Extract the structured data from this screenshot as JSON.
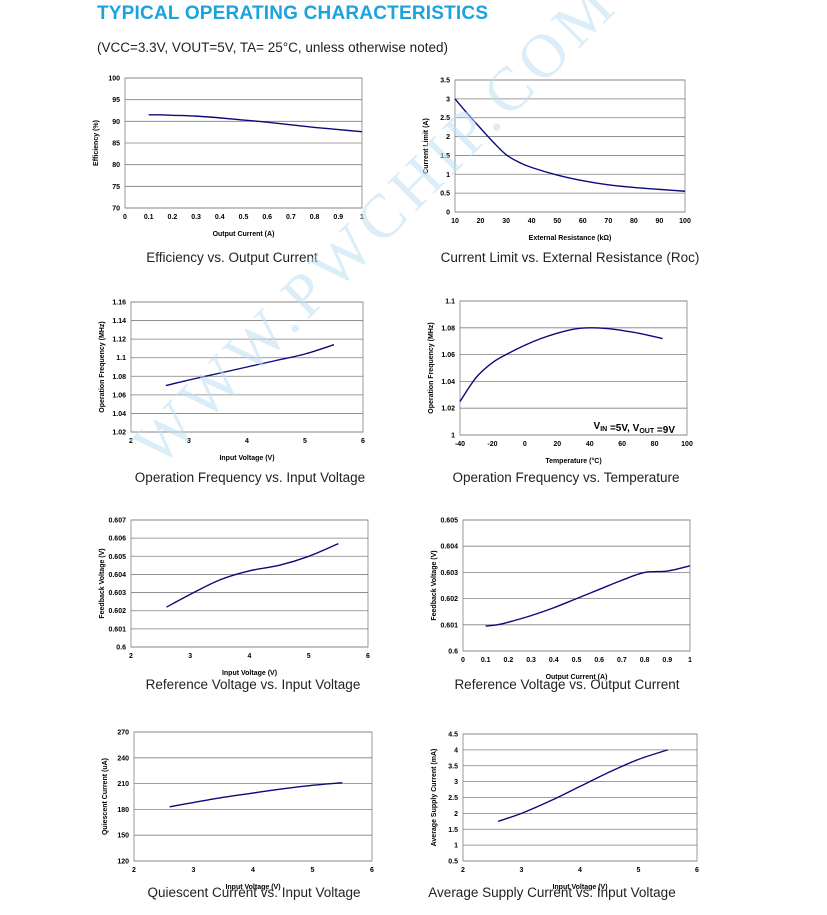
{
  "header": {
    "title": "TYPICAL OPERATING CHARACTERISTICS",
    "subtitle": "(VCC=3.3V, VOUT=5V, TA= 25°C, unless otherwise noted)"
  },
  "watermark": "WWW.PWCHIP.COM",
  "chart_data": [
    {
      "type": "line",
      "caption": "Efficiency vs. Output Current",
      "xlabel": "Output Current (A)",
      "ylabel": "Efficiency (%)",
      "xlim": [
        0,
        1
      ],
      "ylim": [
        70,
        100
      ],
      "xticks": [
        "0",
        "0.1",
        "0.2",
        "0.3",
        "0.4",
        "0.5",
        "0.6",
        "0.7",
        "0.8",
        "0.9",
        "1"
      ],
      "yticks": [
        "70",
        "75",
        "80",
        "85",
        "90",
        "95",
        "100"
      ],
      "grid": "horizontal",
      "x": [
        0.1,
        0.15,
        0.2,
        0.3,
        0.4,
        0.5,
        0.6,
        0.7,
        0.8,
        0.9,
        1.0
      ],
      "y": [
        91.5,
        91.5,
        91.4,
        91.2,
        90.8,
        90.3,
        89.8,
        89.2,
        88.6,
        88.1,
        87.6
      ]
    },
    {
      "type": "line",
      "caption": "Current Limit vs. External Resistance (Roc)",
      "xlabel": "External Resistance (kΩ)",
      "ylabel": "Current Limit (A)",
      "xlim": [
        10,
        100
      ],
      "ylim": [
        0,
        3.5
      ],
      "xticks": [
        "10",
        "20",
        "30",
        "40",
        "50",
        "60",
        "70",
        "80",
        "90",
        "100"
      ],
      "yticks": [
        "0",
        "0.5",
        "1",
        "1.5",
        "2",
        "2.5",
        "3",
        "3.5"
      ],
      "grid": "horizontal",
      "x": [
        10,
        15,
        20,
        25,
        30,
        35,
        40,
        50,
        60,
        70,
        80,
        90,
        100
      ],
      "y": [
        3.0,
        2.6,
        2.22,
        1.85,
        1.52,
        1.32,
        1.18,
        0.98,
        0.83,
        0.72,
        0.65,
        0.6,
        0.55
      ]
    },
    {
      "type": "line",
      "caption": "Operation Frequency vs. Input Voltage",
      "xlabel": "Input Voltage (V)",
      "ylabel": "Operation Frequency (MHz)",
      "xlim": [
        2,
        6
      ],
      "ylim": [
        1.02,
        1.16
      ],
      "xticks": [
        "2",
        "3",
        "4",
        "5",
        "6"
      ],
      "yticks": [
        "1.02",
        "1.04",
        "1.06",
        "1.08",
        "1.1",
        "1.12",
        "1.14",
        "1.16"
      ],
      "grid": "horizontal",
      "x": [
        2.6,
        3.0,
        3.5,
        4.0,
        4.5,
        5.0,
        5.5
      ],
      "y": [
        1.07,
        1.076,
        1.083,
        1.09,
        1.097,
        1.104,
        1.114
      ]
    },
    {
      "type": "line",
      "caption": "Operation Frequency vs. Temperature",
      "xlabel": "Temperature (°C)",
      "ylabel": "Operation  Frequency (MHz)",
      "xlim": [
        -40,
        100
      ],
      "ylim": [
        1.0,
        1.1
      ],
      "xticks": [
        "-40",
        "-20",
        "0",
        "20",
        "40",
        "60",
        "80",
        "100"
      ],
      "yticks": [
        "1",
        "1.02",
        "1.04",
        "1.06",
        "1.08",
        "1.1"
      ],
      "grid": "horizontal",
      "annotation": {
        "v_in_label": "V",
        "v_in_sub": "IN",
        "v_in_value": " =5V, V",
        "v_out_sub": "OUT",
        "v_out_value": " =9V"
      },
      "x": [
        -40,
        -30,
        -20,
        -10,
        0,
        10,
        20,
        30,
        40,
        50,
        60,
        70,
        85
      ],
      "y": [
        1.025,
        1.043,
        1.054,
        1.061,
        1.067,
        1.072,
        1.076,
        1.079,
        1.08,
        1.0795,
        1.078,
        1.076,
        1.072
      ]
    },
    {
      "type": "line",
      "caption": "Reference Voltage vs. Input Voltage",
      "xlabel": "Input Voltage (V)",
      "ylabel": "Feedback Voltage (V)",
      "xlim": [
        2,
        6
      ],
      "ylim": [
        0.6,
        0.607
      ],
      "xticks": [
        "2",
        "3",
        "4",
        "5",
        "6"
      ],
      "yticks": [
        "0.6",
        "0.601",
        "0.602",
        "0.603",
        "0.604",
        "0.605",
        "0.606",
        "0.607"
      ],
      "grid": "horizontal",
      "x": [
        2.6,
        3.0,
        3.5,
        4.0,
        4.5,
        5.0,
        5.5
      ],
      "y": [
        0.6022,
        0.6029,
        0.6037,
        0.6042,
        0.6045,
        0.605,
        0.6057
      ]
    },
    {
      "type": "line",
      "caption": "Reference Voltage vs. Output Current",
      "xlabel": "Output Current (A)",
      "ylabel": "Feedback Voltage (V)",
      "xlim": [
        0,
        1
      ],
      "ylim": [
        0.6,
        0.605
      ],
      "xticks": [
        "0",
        "0.1",
        "0.2",
        "0.3",
        "0.4",
        "0.5",
        "0.6",
        "0.7",
        "0.8",
        "0.9",
        "1"
      ],
      "yticks": [
        "0.6",
        "0.601",
        "0.602",
        "0.603",
        "0.604",
        "0.605"
      ],
      "grid": "horizontal",
      "x": [
        0.1,
        0.15,
        0.2,
        0.3,
        0.4,
        0.5,
        0.6,
        0.7,
        0.8,
        0.9,
        1.0
      ],
      "y": [
        0.60095,
        0.601,
        0.6011,
        0.60135,
        0.60165,
        0.602,
        0.60235,
        0.6027,
        0.603,
        0.60305,
        0.60325
      ]
    },
    {
      "type": "line",
      "caption": "Quiescent Current vs. Input Voltage",
      "xlabel": "Input Voltage (V)",
      "ylabel": "Quiescent  Current (uA)",
      "xlim": [
        2,
        6
      ],
      "ylim": [
        120,
        270
      ],
      "xticks": [
        "2",
        "3",
        "4",
        "5",
        "6"
      ],
      "yticks": [
        "120",
        "150",
        "180",
        "210",
        "240",
        "270"
      ],
      "grid": "horizontal",
      "x": [
        2.6,
        3.0,
        3.5,
        4.0,
        4.5,
        5.0,
        5.5
      ],
      "y": [
        183,
        188,
        194,
        199,
        204,
        208,
        211
      ]
    },
    {
      "type": "line",
      "caption": "Average Supply Current vs. Input Voltage",
      "xlabel": "Input Voltage (V)",
      "ylabel": "Average Supply  Current (mA)",
      "xlim": [
        2,
        6
      ],
      "ylim": [
        0.5,
        4.5
      ],
      "xticks": [
        "2",
        "3",
        "4",
        "5",
        "6"
      ],
      "yticks": [
        "0.5",
        "1",
        "1.5",
        "2",
        "2.5",
        "3",
        "3.5",
        "4",
        "4.5"
      ],
      "grid": "horizontal",
      "x": [
        2.6,
        3.0,
        3.5,
        4.0,
        4.5,
        5.0,
        5.5
      ],
      "y": [
        1.75,
        2.0,
        2.4,
        2.85,
        3.3,
        3.7,
        4.0
      ]
    }
  ]
}
